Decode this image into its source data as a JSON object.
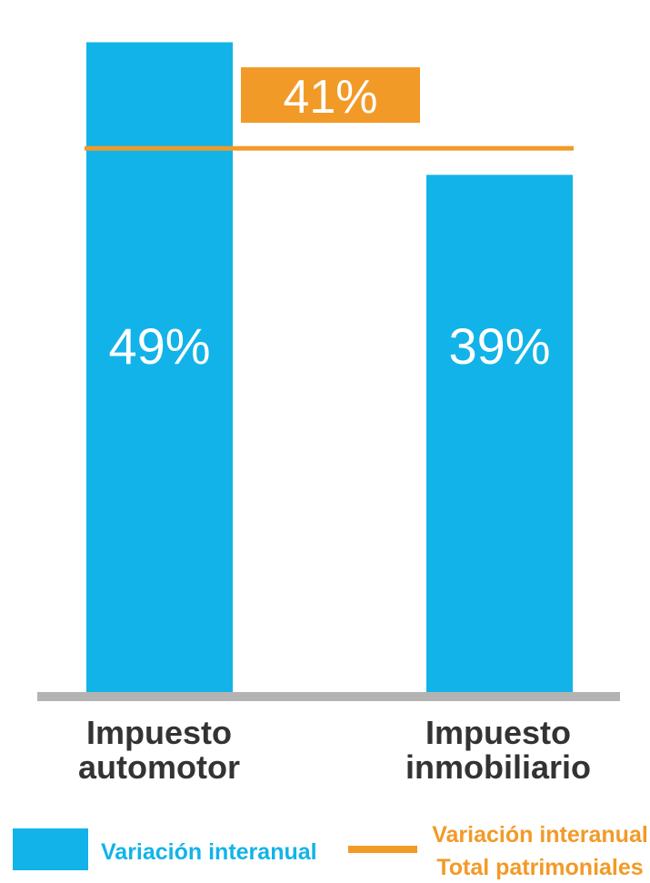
{
  "colors": {
    "bar": "#12b3e8",
    "reference": "#f29a27",
    "baseline": "#b3b3b3",
    "category_text": "#333333",
    "bar_label_text": "#ffffff"
  },
  "chart_data": {
    "type": "bar",
    "categories": [
      [
        "Impuesto",
        "automotor"
      ],
      [
        "Impuesto",
        "inmobiliario"
      ]
    ],
    "series": [
      {
        "name": "Variación interanual",
        "values": [
          49,
          39
        ],
        "value_labels": [
          "49%",
          "39%"
        ]
      }
    ],
    "reference_line": {
      "name": [
        "Variación interanual",
        "Total patrimoniales"
      ],
      "value": 41,
      "label": "41%"
    },
    "ylim": [
      0,
      51.5
    ],
    "grid": false,
    "legend_position": "bottom"
  },
  "legend": {
    "bar_label": "Variación interanual",
    "line_label": [
      "Variación interanual",
      "Total patrimoniales"
    ]
  }
}
